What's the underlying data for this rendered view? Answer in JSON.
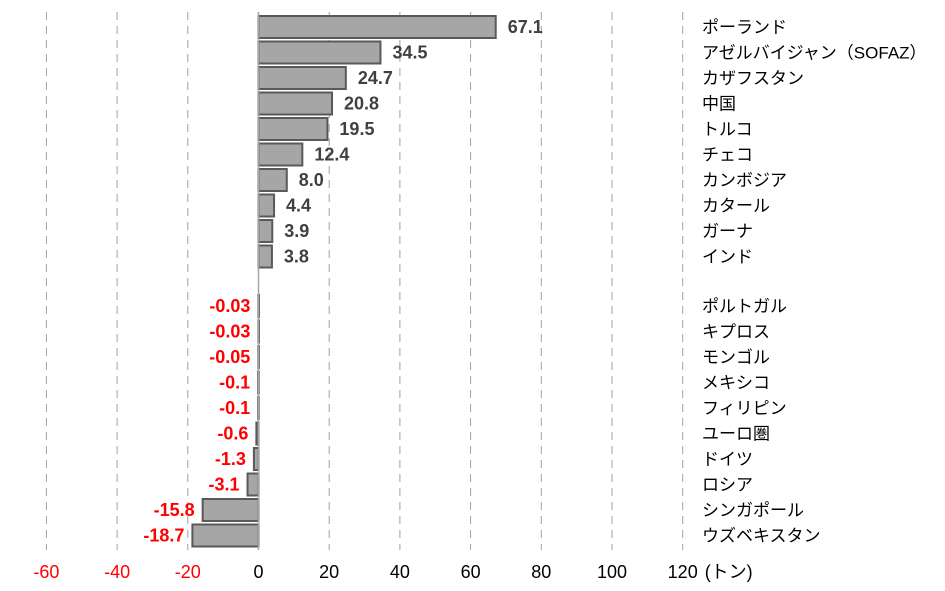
{
  "chart_data": {
    "type": "bar",
    "orientation": "horizontal",
    "x_unit_label": "(トン)",
    "xlim": [
      -60,
      120
    ],
    "x_ticks": [
      -60,
      -40,
      -20,
      0,
      20,
      40,
      60,
      80,
      100,
      120
    ],
    "grid": "vertical dashed",
    "bar_color": "#A6A6A6",
    "bar_edge_color": "#595959",
    "positive_label_color": "#404040",
    "negative_label_color": "#FF0000",
    "groups": [
      {
        "name": "",
        "items": [
          {
            "category": "ポーランド",
            "value": 67.1,
            "label": "67.1"
          },
          {
            "category": "アゼルバイジャン（SOFAZ）",
            "value": 34.5,
            "label": "34.5"
          },
          {
            "category": "カザフスタン",
            "value": 24.7,
            "label": "24.7"
          },
          {
            "category": "中国",
            "value": 20.8,
            "label": "20.8"
          },
          {
            "category": "トルコ",
            "value": 19.5,
            "label": "19.5"
          },
          {
            "category": "チェコ",
            "value": 12.4,
            "label": "12.4"
          },
          {
            "category": "カンボジア",
            "value": 8.0,
            "label": "8.0"
          },
          {
            "category": "カタール",
            "value": 4.4,
            "label": "4.4"
          },
          {
            "category": "ガーナ",
            "value": 3.9,
            "label": "3.9"
          },
          {
            "category": "インド",
            "value": 3.8,
            "label": "3.8"
          }
        ]
      },
      {
        "name": "",
        "items": [
          {
            "category": "ポルトガル",
            "value": -0.03,
            "label": "-0.03"
          },
          {
            "category": "キプロス",
            "value": -0.03,
            "label": "-0.03"
          },
          {
            "category": "モンゴル",
            "value": -0.05,
            "label": "-0.05"
          },
          {
            "category": "メキシコ",
            "value": -0.1,
            "label": "-0.1"
          },
          {
            "category": "フィリピン",
            "value": -0.1,
            "label": "-0.1"
          },
          {
            "category": "ユーロ圏",
            "value": -0.6,
            "label": "-0.6"
          },
          {
            "category": "ドイツ",
            "value": -1.3,
            "label": "-1.3"
          },
          {
            "category": "ロシア",
            "value": -3.1,
            "label": "-3.1"
          },
          {
            "category": "シンガポール",
            "value": -15.8,
            "label": "-15.8"
          },
          {
            "category": "ウズベキスタン",
            "value": -18.7,
            "label": "-18.7"
          }
        ]
      }
    ]
  }
}
